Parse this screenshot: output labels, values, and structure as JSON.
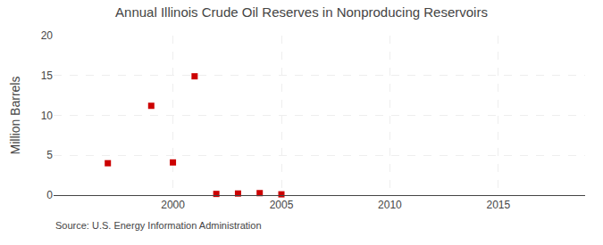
{
  "chart_data": {
    "type": "scatter",
    "title": "Annual Illinois Crude Oil Reserves in Nonproducing Reservoirs",
    "ylabel": "Million Barrels",
    "source": "Source: U.S. Energy Information Administration",
    "x": [
      1997,
      1999,
      2000,
      2001,
      2002,
      2003,
      2004,
      2005
    ],
    "values": [
      4.0,
      11.2,
      4.1,
      14.9,
      0.15,
      0.2,
      0.25,
      0.1
    ],
    "color": "#cc0000",
    "marker": "square",
    "xlim": [
      1994.5,
      2019
    ],
    "ylim": [
      0,
      20
    ],
    "xticks": [
      2000,
      2005,
      2010,
      2015
    ],
    "yticks": [
      0,
      5,
      10,
      15,
      20
    ],
    "grid": true
  }
}
